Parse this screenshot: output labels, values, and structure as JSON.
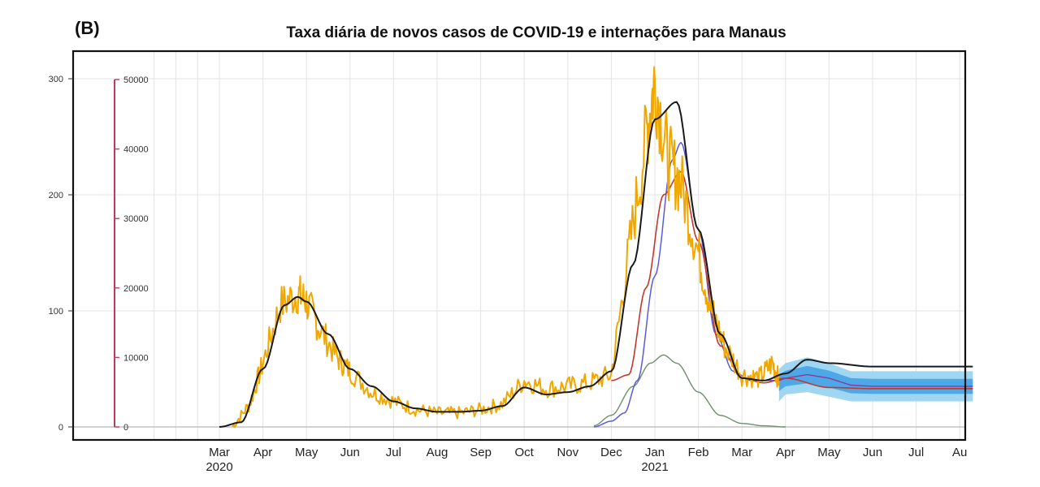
{
  "panel_label": "(B)",
  "title": "Taxa diária de novos casos de COVID-19 e internações para Manaus",
  "colors": {
    "cases": "#f0a800",
    "fit": "#1a1a1a",
    "blue": "#5b5bd6",
    "red": "#c0392b",
    "green": "#6f8f6f",
    "band_outer": "#9fd6f2",
    "band_inner": "#3fa0e6",
    "band_center": "#2a7fd4",
    "axis2": "#c23a5a"
  },
  "chart_data": {
    "type": "line",
    "title": "Taxa diária de novos casos de COVID-19 e internações para Manaus",
    "xlabel": "",
    "ylabel": "",
    "grid": true,
    "ylim": [
      0,
      310
    ],
    "y_ticks": [
      0,
      100,
      200,
      300
    ],
    "secondary_axis": {
      "ylim": [
        0,
        50000
      ],
      "ticks": [
        0,
        10000,
        20000,
        30000,
        40000,
        50000
      ]
    },
    "x_month_labels": [
      "Mar",
      "Apr",
      "May",
      "Jun",
      "Jul",
      "Aug",
      "Sep",
      "Oct",
      "Nov",
      "Dec",
      "Jan",
      "Feb",
      "Mar",
      "Apr",
      "May",
      "Jun",
      "Jul",
      "Au"
    ],
    "x_year_labels": [
      {
        "month_index": 0,
        "label": "2020"
      },
      {
        "month_index": 10,
        "label": "2021"
      }
    ],
    "series": [
      {
        "style": "line",
        "month_index": [
          0,
          0.5,
          1,
          1.5,
          1.8,
          2,
          2.5,
          3,
          3.5,
          4,
          4.5,
          5,
          5.5,
          6,
          6.5,
          7,
          7.5,
          8,
          8.5,
          9,
          9.5,
          10,
          10.5,
          11,
          11.5,
          12,
          12.5,
          13,
          13.5,
          14,
          15,
          16,
          17,
          17.3
        ],
        "y": [
          0,
          4,
          50,
          105,
          112,
          108,
          80,
          50,
          35,
          22,
          16,
          13,
          13,
          14,
          18,
          34,
          28,
          30,
          35,
          48,
          140,
          265,
          280,
          170,
          80,
          42,
          40,
          46,
          58,
          55,
          52,
          52,
          52,
          52
        ]
      },
      {
        "style": "noisy",
        "month_index": [
          0.3,
          0.7,
          1,
          1.4,
          1.8,
          2,
          2.3,
          2.7,
          3,
          3.5,
          4,
          4.5,
          5,
          5.5,
          6,
          6.5,
          7,
          7.5,
          8,
          8.5,
          9,
          9.4,
          9.8,
          10,
          10.3,
          10.6,
          11,
          11.3,
          11.6,
          12,
          12.4,
          12.7,
          12.85
        ],
        "y": [
          0,
          20,
          55,
          105,
          115,
          108,
          85,
          60,
          48,
          30,
          22,
          15,
          12,
          12,
          15,
          20,
          40,
          33,
          35,
          38,
          45,
          150,
          250,
          300,
          230,
          210,
          150,
          100,
          70,
          45,
          42,
          55,
          40
        ]
      },
      {
        "style": "line",
        "month_index": [
          8.6,
          9,
          9.3,
          9.6,
          10,
          10.4,
          10.6,
          11,
          11.4,
          11.8,
          12.2,
          12.8
        ],
        "y": [
          0,
          5,
          12,
          40,
          130,
          230,
          245,
          170,
          80,
          48,
          40,
          40
        ]
      },
      {
        "style": "line",
        "month_index": [
          9,
          9.4,
          9.8,
          10.2,
          10.6,
          11,
          11.5,
          12,
          12.5,
          13,
          14,
          15,
          16,
          17,
          17.3
        ],
        "y": [
          40,
          45,
          120,
          200,
          220,
          160,
          70,
          42,
          38,
          42,
          34,
          33,
          33,
          33,
          33
        ]
      },
      {
        "style": "line",
        "month_index": [
          8.6,
          9,
          9.5,
          9.9,
          10.2,
          10.5,
          11,
          11.5,
          12,
          12.5,
          13
        ],
        "y": [
          1,
          10,
          35,
          55,
          62,
          55,
          30,
          10,
          3,
          1,
          0
        ]
      }
    ],
    "band": {
      "month_index": [
        12.85,
        13,
        13.5,
        14,
        14.5,
        15,
        15.5,
        16,
        17,
        17.3
      ],
      "lower": [
        22,
        28,
        30,
        26,
        22,
        22,
        22,
        22,
        22,
        22
      ],
      "upper": [
        50,
        55,
        60,
        55,
        48,
        48,
        48,
        48,
        48,
        48
      ],
      "center": [
        40,
        42,
        45,
        42,
        36,
        35,
        35,
        35,
        35,
        35
      ]
    }
  }
}
